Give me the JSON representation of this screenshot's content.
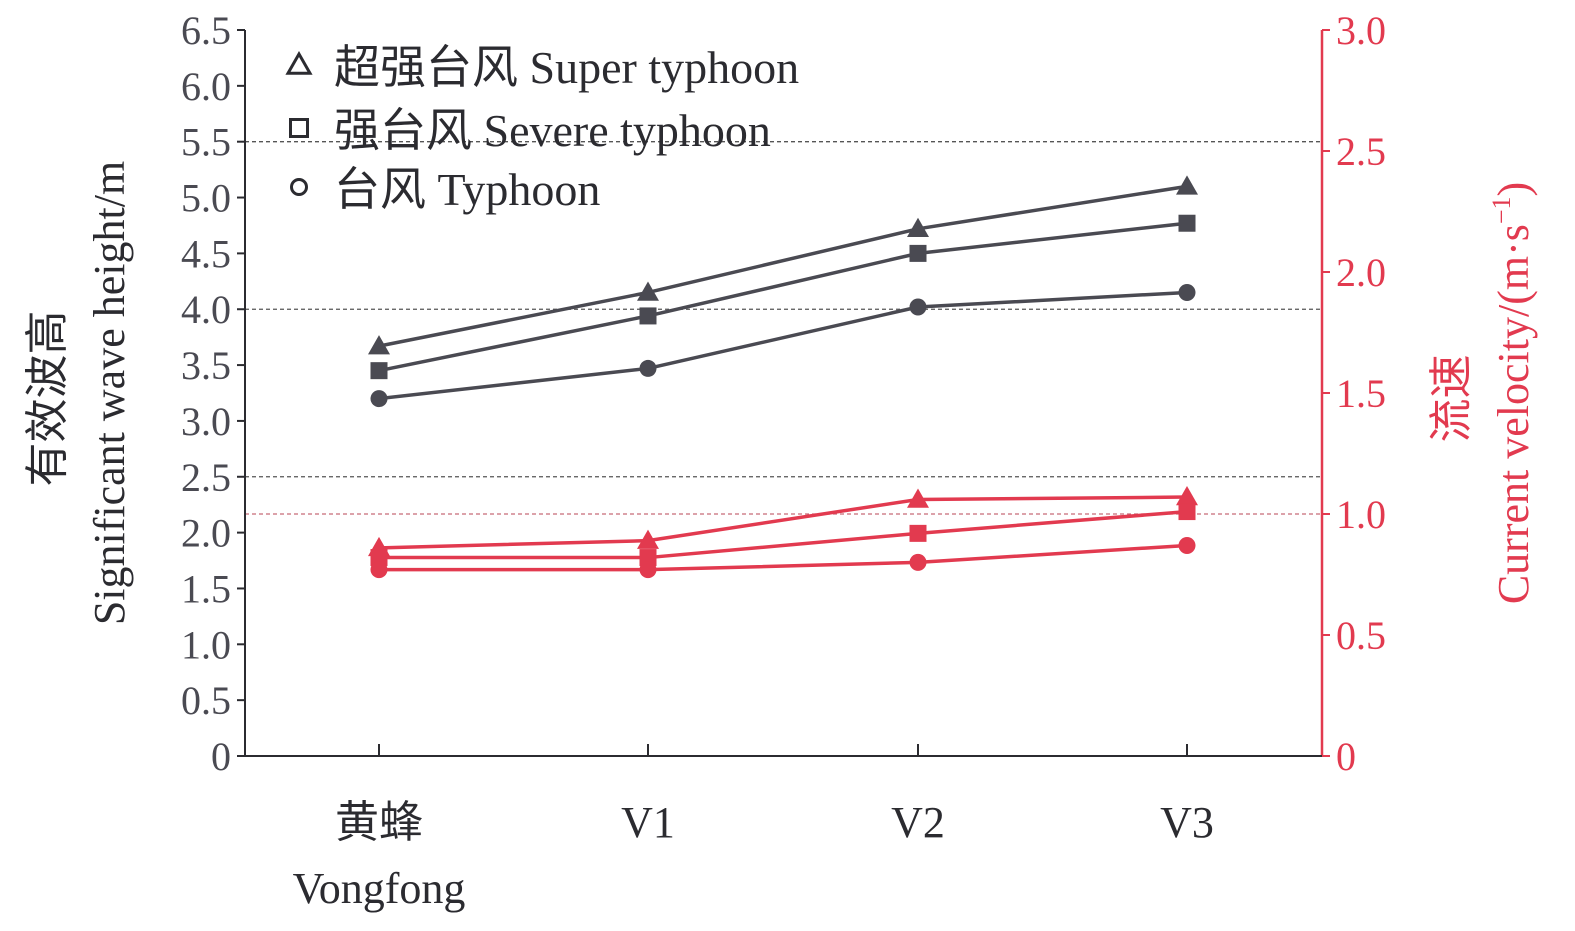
{
  "chart_data": {
    "type": "line",
    "categories": [
      [
        "黄蜂",
        "Vongfong"
      ],
      [
        "V1"
      ],
      [
        "V2"
      ],
      [
        "V3"
      ]
    ],
    "y_left": {
      "label_cn": "有效波高",
      "label_en": "Significant wave height/m",
      "range": [
        0,
        6.5
      ],
      "ticks": [
        "0",
        "0.5",
        "1.0",
        "1.5",
        "2.0",
        "2.5",
        "3.0",
        "3.5",
        "4.0",
        "4.5",
        "5.0",
        "5.5",
        "6.0",
        "6.5"
      ],
      "color": "#4a4a52"
    },
    "y_right": {
      "label_cn": "流速",
      "label_en": "Current velocity/(m·s",
      "label_sup": "−1",
      "label_end": ")",
      "range": [
        0,
        3.0
      ],
      "ticks": [
        "0",
        "0.5",
        "1.0",
        "1.5",
        "2.0",
        "2.5",
        "3.0"
      ],
      "color": "#e23a4f"
    },
    "legend": [
      {
        "marker": "triangle",
        "label": "超强台风 Super typhoon"
      },
      {
        "marker": "square",
        "label": "强台风 Severe typhoon"
      },
      {
        "marker": "circle",
        "label": "台风 Typhoon"
      }
    ],
    "series": [
      {
        "name": "超强台风 Super typhoon",
        "quantity": "wave_height",
        "axis": "left",
        "marker": "triangle",
        "values": [
          3.67,
          4.15,
          4.72,
          5.1
        ]
      },
      {
        "name": "强台风 Severe typhoon",
        "quantity": "wave_height",
        "axis": "left",
        "marker": "square",
        "values": [
          3.45,
          3.94,
          4.5,
          4.77
        ]
      },
      {
        "name": "台风 Typhoon",
        "quantity": "wave_height",
        "axis": "left",
        "marker": "circle",
        "values": [
          3.2,
          3.47,
          4.02,
          4.15
        ]
      },
      {
        "name": "超强台风 Super typhoon",
        "quantity": "current_velocity",
        "axis": "right",
        "marker": "triangle",
        "values": [
          0.86,
          0.89,
          1.06,
          1.07
        ]
      },
      {
        "name": "强台风 Severe typhoon",
        "quantity": "current_velocity",
        "axis": "right",
        "marker": "square",
        "values": [
          0.82,
          0.82,
          0.92,
          1.01
        ]
      },
      {
        "name": "台风 Typhoon",
        "quantity": "current_velocity",
        "axis": "right",
        "marker": "circle",
        "values": [
          0.77,
          0.77,
          0.8,
          0.87
        ]
      }
    ],
    "reference_lines": [
      {
        "axis": "left",
        "value": 5.5,
        "color": "#555555"
      },
      {
        "axis": "left",
        "value": 4.0,
        "color": "#555555"
      },
      {
        "axis": "left",
        "value": 2.5,
        "color": "#555555"
      },
      {
        "axis": "right",
        "value": 1.0,
        "color": "#c76b78"
      }
    ],
    "colors": {
      "wave": "#4a4a52",
      "velocity": "#e23a4f"
    }
  }
}
